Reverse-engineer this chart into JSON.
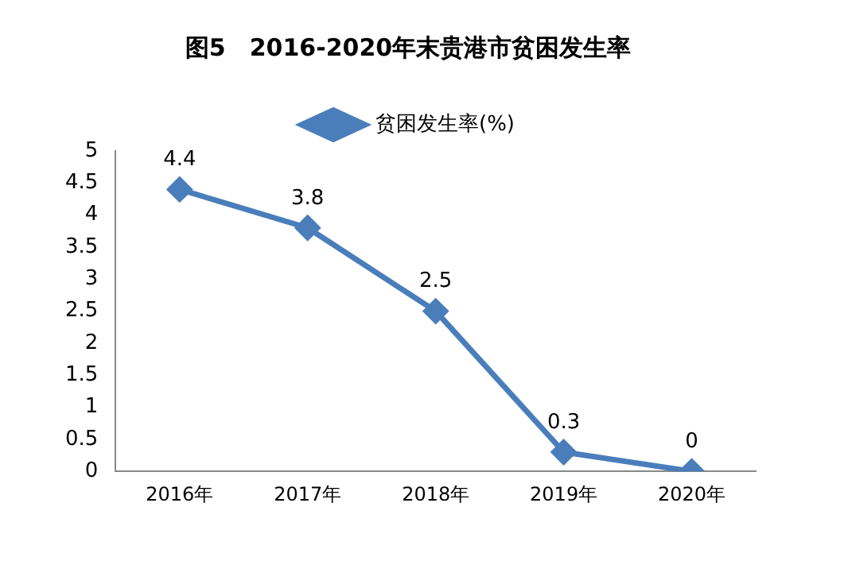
{
  "chart_data": {
    "type": "line",
    "title": "图5　2016-2020年末贵港市贫困发生率",
    "categories": [
      "2016年",
      "2017年",
      "2018年",
      "2019年",
      "2020年"
    ],
    "series": [
      {
        "name": "贫困发生率(%)",
        "color": "#4a7ebb",
        "values": [
          4.4,
          3.8,
          2.5,
          0.3,
          0
        ]
      }
    ],
    "ylim": [
      0,
      5
    ],
    "yticks": [
      0,
      0.5,
      1,
      1.5,
      2,
      2.5,
      3,
      3.5,
      4,
      4.5,
      5
    ],
    "grid": false,
    "legend": "top",
    "marker": "diamond",
    "line_style": "solid",
    "data_labels": true
  }
}
